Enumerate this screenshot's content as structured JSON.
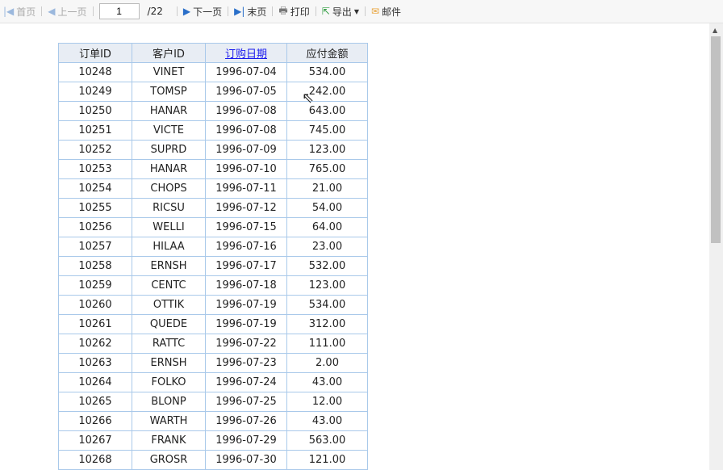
{
  "toolbar": {
    "first": "首页",
    "prev": "上一页",
    "page": "1",
    "total": "/22",
    "next": "下一页",
    "last": "末页",
    "print": "打印",
    "export": "导出",
    "mail": "邮件"
  },
  "table": {
    "headers": [
      "订单ID",
      "客户ID",
      "订购日期",
      "应付金额"
    ],
    "rows": [
      [
        "10248",
        "VINET",
        "1996-07-04",
        "534.00"
      ],
      [
        "10249",
        "TOMSP",
        "1996-07-05",
        "242.00"
      ],
      [
        "10250",
        "HANAR",
        "1996-07-08",
        "643.00"
      ],
      [
        "10251",
        "VICTE",
        "1996-07-08",
        "745.00"
      ],
      [
        "10252",
        "SUPRD",
        "1996-07-09",
        "123.00"
      ],
      [
        "10253",
        "HANAR",
        "1996-07-10",
        "765.00"
      ],
      [
        "10254",
        "CHOPS",
        "1996-07-11",
        "21.00"
      ],
      [
        "10255",
        "RICSU",
        "1996-07-12",
        "54.00"
      ],
      [
        "10256",
        "WELLI",
        "1996-07-15",
        "64.00"
      ],
      [
        "10257",
        "HILAA",
        "1996-07-16",
        "23.00"
      ],
      [
        "10258",
        "ERNSH",
        "1996-07-17",
        "532.00"
      ],
      [
        "10259",
        "CENTC",
        "1996-07-18",
        "123.00"
      ],
      [
        "10260",
        "OTTIK",
        "1996-07-19",
        "534.00"
      ],
      [
        "10261",
        "QUEDE",
        "1996-07-19",
        "312.00"
      ],
      [
        "10262",
        "RATTC",
        "1996-07-22",
        "111.00"
      ],
      [
        "10263",
        "ERNSH",
        "1996-07-23",
        "2.00"
      ],
      [
        "10264",
        "FOLKO",
        "1996-07-24",
        "43.00"
      ],
      [
        "10265",
        "BLONP",
        "1996-07-25",
        "12.00"
      ],
      [
        "10266",
        "WARTH",
        "1996-07-26",
        "43.00"
      ],
      [
        "10267",
        "FRANK",
        "1996-07-29",
        "563.00"
      ],
      [
        "10268",
        "GROSR",
        "1996-07-30",
        "121.00"
      ]
    ]
  }
}
